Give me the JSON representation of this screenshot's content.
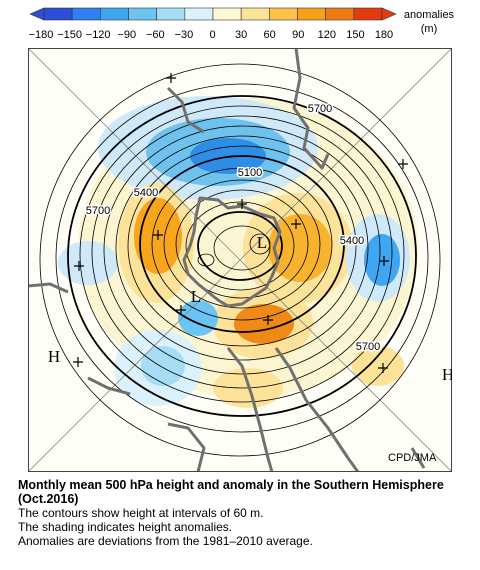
{
  "colorbar": {
    "ticks": [
      "−180",
      "−150",
      "−120",
      "−90",
      "−60",
      "−30",
      "0",
      "30",
      "60",
      "90",
      "120",
      "150",
      "180"
    ],
    "unit_line1": "anomalies",
    "unit_line2": "(m)",
    "colors": [
      "#2c4fd6",
      "#2e7ff2",
      "#3fa6f2",
      "#6cc4f2",
      "#a6ddf5",
      "#dbf1fb",
      "#fff8d4",
      "#fde39a",
      "#fcc24c",
      "#f5a21a",
      "#ef7a14",
      "#e23b10"
    ]
  },
  "map": {
    "contour_labels": [
      "5700",
      "5100",
      "5400",
      "5700",
      "5400",
      "5700"
    ],
    "pressure_markers": [
      "L",
      "L",
      "H",
      "H"
    ],
    "credit": "CPD/JMA"
  },
  "caption": {
    "title": "Monthly mean 500 hPa height and anomaly in the Southern Hemisphere (Oct.2016)",
    "line1": "The contours show height at intervals of 60 m.",
    "line2": "The shading indicates height anomalies.",
    "line3": "Anomalies are deviations from the 1981–2010 average."
  }
}
